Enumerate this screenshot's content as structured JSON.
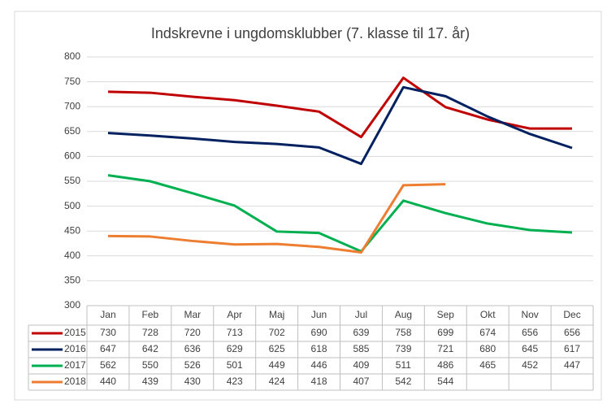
{
  "chart_data": {
    "type": "line",
    "title": "Indskrevne i ungdomsklubber (7. klasse til 17. år)",
    "categories": [
      "Jan",
      "Feb",
      "Mar",
      "Apr",
      "Maj",
      "Jun",
      "Jul",
      "Aug",
      "Sep",
      "Okt",
      "Nov",
      "Dec"
    ],
    "series": [
      {
        "name": "2015",
        "color": "#c00000",
        "values": [
          730,
          728,
          720,
          713,
          702,
          690,
          639,
          758,
          699,
          674,
          656,
          656
        ]
      },
      {
        "name": "2016",
        "color": "#002060",
        "values": [
          647,
          642,
          636,
          629,
          625,
          618,
          585,
          739,
          721,
          680,
          645,
          617
        ]
      },
      {
        "name": "2017",
        "color": "#00b050",
        "values": [
          562,
          550,
          526,
          501,
          449,
          446,
          409,
          511,
          486,
          465,
          452,
          447
        ]
      },
      {
        "name": "2018",
        "color": "#ed7d31",
        "values": [
          440,
          439,
          430,
          423,
          424,
          418,
          407,
          542,
          544,
          null,
          null,
          null
        ]
      }
    ],
    "ylim": [
      300,
      800
    ],
    "yticks": [
      300,
      350,
      400,
      450,
      500,
      550,
      600,
      650,
      700,
      750,
      800
    ],
    "grid": true
  }
}
